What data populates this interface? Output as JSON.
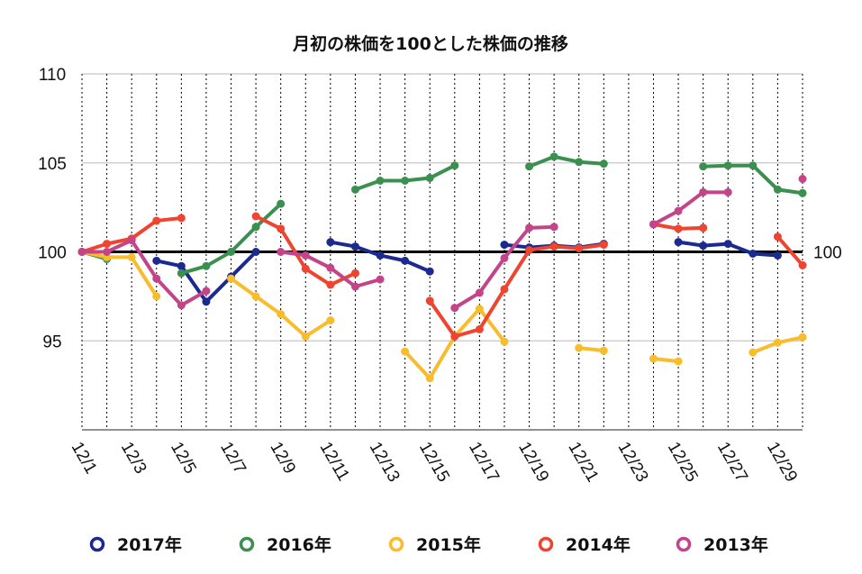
{
  "chart_data": {
    "type": "line",
    "title": "月初の株価を100とした株価の推移",
    "xlabel": "",
    "ylabel": "",
    "ylim": [
      90,
      110
    ],
    "yticks": [
      95,
      100,
      105,
      110
    ],
    "ytick_labels": [
      "95",
      "100",
      "105",
      "110"
    ],
    "reference_line": {
      "value": 100,
      "label": "100",
      "color": "#000000"
    },
    "x": [
      1,
      2,
      3,
      4,
      5,
      6,
      7,
      8,
      9,
      10,
      11,
      12,
      13,
      14,
      15,
      16,
      17,
      18,
      19,
      20,
      21,
      22,
      23,
      24,
      25,
      26,
      27,
      28,
      29,
      30
    ],
    "xtick_labels": [
      "12/1",
      "12/3",
      "12/5",
      "12/7",
      "12/9",
      "12/11",
      "12/13",
      "12/15",
      "12/17",
      "12/19",
      "12/21",
      "12/23",
      "12/25",
      "12/27",
      "12/29"
    ],
    "grid": {
      "horizontal": true,
      "vertical_dashed": true
    },
    "legend_position": "bottom",
    "series": [
      {
        "name": "2017年",
        "color": "#1b2a8e",
        "values": [
          100,
          null,
          null,
          99.5,
          99.2,
          97.2,
          98.6,
          100,
          null,
          null,
          100.55,
          100.3,
          99.8,
          99.5,
          98.9,
          null,
          null,
          100.4,
          100.25,
          100.35,
          100.25,
          100.45,
          null,
          null,
          100.55,
          100.35,
          100.45,
          99.9,
          99.8,
          null
        ]
      },
      {
        "name": "2016年",
        "color": "#3b9050",
        "values": [
          100,
          99.6,
          null,
          null,
          98.8,
          99.2,
          100,
          101.4,
          102.7,
          null,
          null,
          103.5,
          104.0,
          104.0,
          104.15,
          104.85,
          null,
          null,
          104.8,
          105.35,
          105.05,
          104.95,
          null,
          null,
          null,
          104.8,
          104.85,
          104.85,
          103.5,
          103.3
        ]
      },
      {
        "name": "2015年",
        "color": "#f9bc2c",
        "values": [
          100,
          99.7,
          99.7,
          97.5,
          null,
          null,
          98.5,
          97.5,
          96.5,
          95.25,
          96.15,
          null,
          null,
          94.4,
          92.9,
          95.25,
          96.8,
          94.95,
          null,
          null,
          94.6,
          94.45,
          null,
          94.0,
          93.85,
          null,
          null,
          94.35,
          94.9,
          95.2
        ]
      },
      {
        "name": "2014年",
        "color": "#ee4430",
        "values": [
          100,
          100.45,
          100.75,
          101.75,
          101.9,
          null,
          null,
          102.0,
          101.3,
          99.05,
          98.15,
          98.8,
          null,
          null,
          97.25,
          95.25,
          95.65,
          97.9,
          100.1,
          100.3,
          100.2,
          100.4,
          null,
          101.55,
          101.3,
          101.35,
          null,
          null,
          100.85,
          99.25
        ]
      },
      {
        "name": "2013年",
        "color": "#c4448a",
        "values": [
          100,
          100,
          100.65,
          98.5,
          97.0,
          97.8,
          null,
          null,
          100,
          99.8,
          99.1,
          98.05,
          98.45,
          null,
          null,
          96.85,
          97.7,
          99.65,
          101.35,
          101.4,
          null,
          null,
          null,
          101.55,
          102.3,
          103.35,
          103.35,
          null,
          null,
          104.1
        ]
      }
    ]
  }
}
